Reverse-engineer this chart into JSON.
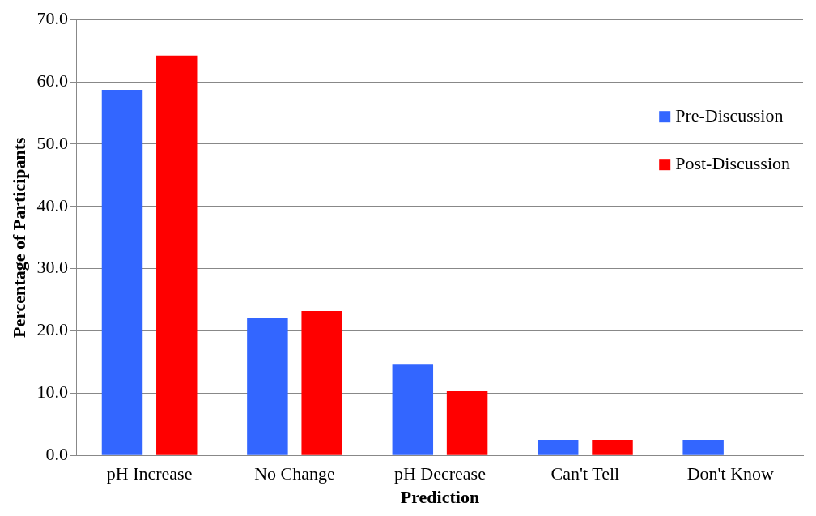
{
  "chart_data": {
    "type": "bar",
    "xlabel": "Prediction",
    "ylabel": "Percentage of Participants",
    "categories": [
      "pH Increase",
      "No Change",
      "pH Decrease",
      "Can't Tell",
      "Don't Know"
    ],
    "series": [
      {
        "name": "Pre-Discussion",
        "color": "#3366ff",
        "values": [
          58.7,
          22.0,
          14.7,
          2.5,
          2.5
        ]
      },
      {
        "name": "Post-Discussion",
        "color": "#ff0000",
        "values": [
          64.2,
          23.2,
          10.3,
          2.5,
          0
        ]
      }
    ],
    "ylim": [
      0,
      70
    ],
    "yticks": [
      {
        "value": 0,
        "label": "0.0"
      },
      {
        "value": 10,
        "label": "10.0"
      },
      {
        "value": 20,
        "label": "20.0"
      },
      {
        "value": 30,
        "label": "30.0"
      },
      {
        "value": 40,
        "label": "40.0"
      },
      {
        "value": 50,
        "label": "50.0"
      },
      {
        "value": 60,
        "label": "60.0"
      },
      {
        "value": 70,
        "label": "70.0"
      }
    ],
    "grid": "y",
    "legend": "top right"
  }
}
